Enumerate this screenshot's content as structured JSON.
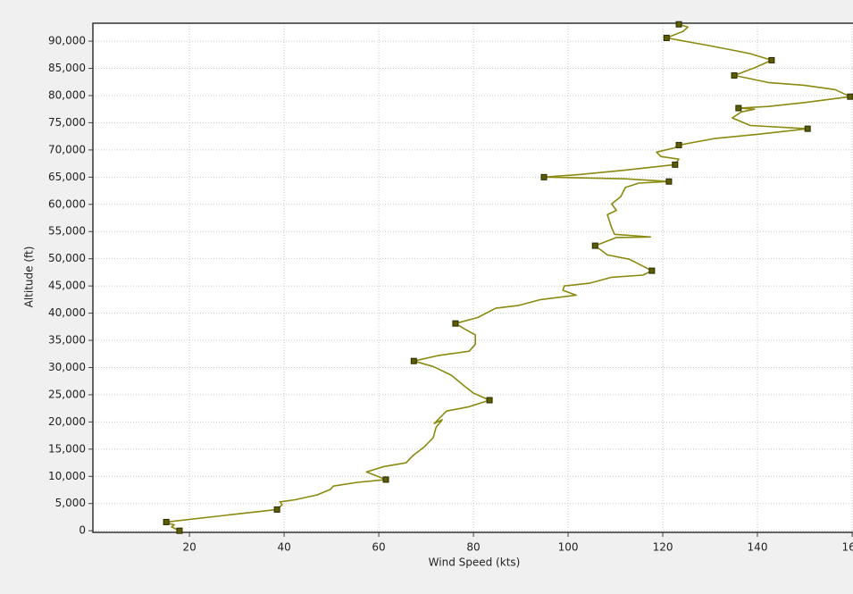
{
  "chart_data": {
    "type": "line",
    "x_label": "Wind Speed (kts)",
    "y_label": "Altitude (ft)",
    "color": "#8a8a10",
    "marker_color": "#5c5c00",
    "grid": true,
    "xlim": [
      -0.4,
      160
    ],
    "xticks": [
      20,
      40,
      60,
      80,
      100,
      120,
      140,
      160
    ],
    "ylim": [
      -300,
      93300
    ],
    "yticks": [
      0,
      {
        "value": 5000,
        "label": "5,000"
      },
      {
        "value": 10000,
        "label": "10,000"
      },
      {
        "value": 15000,
        "label": "15,000"
      },
      {
        "value": 20000,
        "label": "20,000"
      },
      {
        "value": 25000,
        "label": "25,000"
      },
      {
        "value": 30000,
        "label": "30,000"
      },
      {
        "value": 35000,
        "label": "35,000"
      },
      {
        "value": 40000,
        "label": "40,000"
      },
      {
        "value": 45000,
        "label": "45,000"
      },
      {
        "value": 50000,
        "label": "50,000"
      },
      {
        "value": 55000,
        "label": "55,000"
      },
      {
        "value": 60000,
        "label": "60,000"
      },
      {
        "value": 65000,
        "label": "65,000"
      },
      {
        "value": 70000,
        "label": "70,000"
      },
      {
        "value": 75000,
        "label": "75,000"
      },
      {
        "value": 80000,
        "label": "80,000"
      },
      {
        "value": 85000,
        "label": "85,000"
      },
      {
        "value": 90000,
        "label": "90,000"
      }
    ],
    "x": [
      17.9,
      16.2,
      16.8,
      15.8,
      15.1,
      38.5,
      39.6,
      39.1,
      42.3,
      47.0,
      49.8,
      50.4,
      55.5,
      61.5,
      57.4,
      61.1,
      65.8,
      67.2,
      69.6,
      71.5,
      72.1,
      73.4,
      71.7,
      73.4,
      74.3,
      79.1,
      83.4,
      80.0,
      78.1,
      75.3,
      71.5,
      67.4,
      72.5,
      79.1,
      80.4,
      80.4,
      78.1,
      76.2,
      80.9,
      84.7,
      89.4,
      94.2,
      98.9,
      101.7,
      98.9,
      99.2,
      104.5,
      109.2,
      115.8,
      117.7,
      113.0,
      108.3,
      105.7,
      110.2,
      117.4,
      109.8,
      109.2,
      108.3,
      110.2,
      109.2,
      111.1,
      112.1,
      114.9,
      121.3,
      112.1,
      94.9,
      102.6,
      112.1,
      122.6,
      123.4,
      119.6,
      118.7,
      122.5,
      123.4,
      130.9,
      140.4,
      150.6,
      138.5,
      134.7,
      136.6,
      139.4,
      136.0,
      142.3,
      149.8,
      159.6,
      156.4,
      149.8,
      142.3,
      138.5,
      135.1,
      139.4,
      143.0,
      138.5,
      135.7,
      129.1,
      120.8,
      124.3,
      125.3,
      123.4
    ],
    "values": [
      0,
      700,
      1100,
      1300,
      1600,
      3900,
      4800,
      5300,
      5700,
      6600,
      7600,
      8200,
      8900,
      9400,
      10800,
      11800,
      12500,
      13800,
      15400,
      17100,
      19000,
      20400,
      19700,
      21200,
      22000,
      22800,
      24000,
      25300,
      26600,
      28600,
      30200,
      31200,
      32200,
      33000,
      34300,
      36000,
      37100,
      38100,
      39200,
      40900,
      41400,
      42500,
      43000,
      43300,
      44200,
      45000,
      45500,
      46600,
      47000,
      47800,
      49900,
      50700,
      52400,
      53900,
      54000,
      54500,
      55700,
      58100,
      58900,
      60100,
      61400,
      63100,
      63900,
      64200,
      64700,
      65000,
      65500,
      66300,
      67300,
      68300,
      68800,
      69600,
      70400,
      70900,
      72100,
      72900,
      73900,
      74500,
      75900,
      77000,
      77500,
      77700,
      78000,
      78700,
      79800,
      81100,
      81900,
      82400,
      83100,
      83700,
      85100,
      86500,
      87700,
      88200,
      89300,
      90600,
      91800,
      92600,
      93100
    ],
    "markers": {
      "x": [
        17.9,
        15.1,
        38.5,
        61.5,
        83.4,
        67.4,
        76.2,
        117.7,
        105.7,
        121.3,
        94.9,
        122.6,
        123.4,
        150.6,
        136.0,
        159.6,
        135.1,
        143.0,
        120.8,
        123.4
      ],
      "values": [
        0,
        1600,
        3900,
        9400,
        24000,
        31200,
        38100,
        47800,
        52400,
        64200,
        65000,
        67300,
        70900,
        73900,
        77700,
        79800,
        83700,
        86500,
        90600,
        93100
      ]
    }
  }
}
